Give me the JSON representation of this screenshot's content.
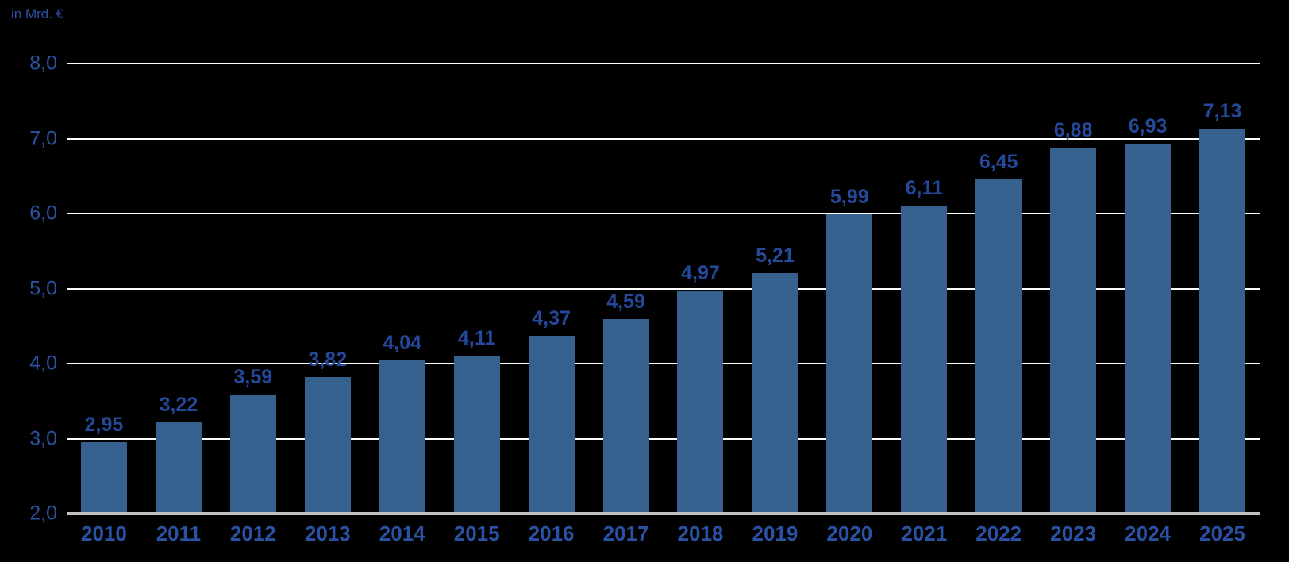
{
  "colors": {
    "background": "#000000",
    "bar": "#36618F",
    "gridline": "#FFFFFF",
    "axis_line": "#BFBFBF",
    "value_label": "#24489A",
    "axis_label": "#2A52A4",
    "year_label": "#2A52A4"
  },
  "chart_data": {
    "type": "bar",
    "unit_label": "in Mrd. €",
    "title": "",
    "xlabel": "",
    "ylabel": "in Mrd. €",
    "ylim": [
      2.0,
      8.0
    ],
    "grid": true,
    "legend": "none",
    "decimal_separator": ",",
    "categories": [
      "2010",
      "2011",
      "2012",
      "2013",
      "2014",
      "2015",
      "2016",
      "2017",
      "2018",
      "2019",
      "2020",
      "2021",
      "2022",
      "2023",
      "2024",
      "2025"
    ],
    "values": [
      2.95,
      3.22,
      3.59,
      3.82,
      4.04,
      4.11,
      4.37,
      4.59,
      4.97,
      5.21,
      5.99,
      6.11,
      6.45,
      6.88,
      6.93,
      7.13
    ],
    "value_labels": [
      "2,95",
      "3,22",
      "3,59",
      "3,82",
      "4,04",
      "4,11",
      "4,37",
      "4,59",
      "4,97",
      "5,21",
      "5,99",
      "6,11",
      "6,45",
      "6,88",
      "6,93",
      "7,13"
    ],
    "y_ticks": [
      {
        "value": 8.0,
        "label": "8,0"
      },
      {
        "value": 7.0,
        "label": "7,0"
      },
      {
        "value": 6.0,
        "label": "6,0"
      },
      {
        "value": 5.0,
        "label": "5,0"
      },
      {
        "value": 4.0,
        "label": "4,0"
      },
      {
        "value": 3.0,
        "label": "3,0"
      },
      {
        "value": 2.0,
        "label": "2,0"
      }
    ]
  }
}
